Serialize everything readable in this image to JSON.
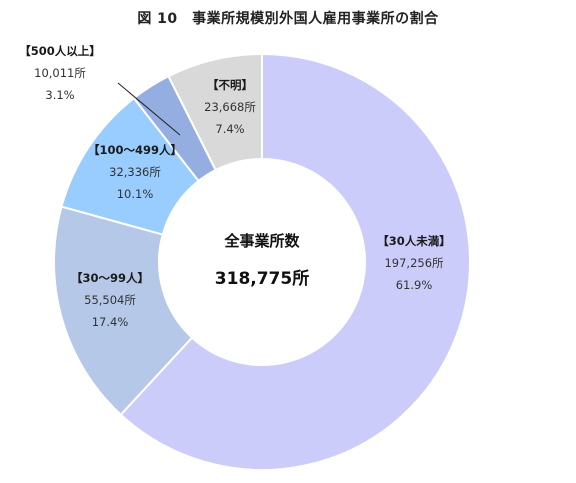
{
  "title": "図 10　事業所規模別外国人雇用事業所の割合",
  "center": {
    "label": "全事業所数",
    "total": "318,775所"
  },
  "chart_data": {
    "type": "pie",
    "donut": true,
    "title": "図 10　事業所規模別外国人雇用事業所の割合",
    "unit": "所",
    "slices": [
      {
        "name": "【30人未満】",
        "count": "197,256所",
        "value": 197256,
        "percent": "61.9%",
        "color": "#ccccfa"
      },
      {
        "name": "【30～99人】",
        "count": "55,504所",
        "value": 55504,
        "percent": "17.4%",
        "color": "#b5c8e8"
      },
      {
        "name": "【100～499人】",
        "count": "32,336所",
        "value": 32336,
        "percent": "10.1%",
        "color": "#99ccff"
      },
      {
        "name": "【500人以上】",
        "count": "10,011所",
        "value": 10011,
        "percent": "3.1%",
        "color": "#95aee2"
      },
      {
        "name": "【不明】",
        "count": "23,668所",
        "value": 23668,
        "percent": "7.4%",
        "color": "#d9d9d9"
      }
    ]
  }
}
